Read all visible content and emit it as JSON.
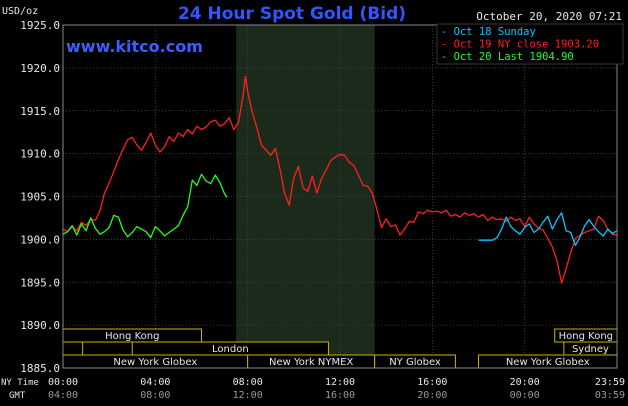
{
  "chart_data": {
    "type": "line",
    "title": "24 Hour Spot Gold (Bid)",
    "watermark": "www.kitco.com",
    "timestamp": "October 20, 2020 07:21",
    "ylabel": "USD/oz",
    "ylim": [
      1885,
      1925
    ],
    "yticks": [
      "1925.0",
      "1920.0",
      "1915.0",
      "1910.0",
      "1905.0",
      "1900.0",
      "1895.0",
      "1890.0",
      "1885.0"
    ],
    "x_row1_label": "NY Time",
    "x_row2_label": "GMT",
    "x_ticks_ny": [
      "00:00",
      "04:00",
      "08:00",
      "12:00",
      "16:00",
      "20:00",
      "23:59"
    ],
    "x_ticks_gmt": [
      "04:00",
      "08:00",
      "12:00",
      "16:00",
      "20:00",
      "00:00",
      "03:59"
    ],
    "legend": [
      {
        "text": "Oct 18 Sunday",
        "color": "#00c8ff"
      },
      {
        "text": "Oct 19 NY close 1903.20",
        "color": "#ff2020"
      },
      {
        "text": "Oct 20 Last 1904.90",
        "color": "#20ff20"
      }
    ],
    "shaded_session_hours": [
      7.5,
      13.5
    ],
    "sessions": [
      {
        "name": "Hong Kong",
        "row": 0,
        "start": 0.0,
        "end": 6.0
      },
      {
        "name": "Hong Kong",
        "row": 0,
        "start": 21.3,
        "end": 24.0
      },
      {
        "name": "London",
        "row": 1,
        "start": 0.0,
        "end": 0.85
      },
      {
        "name": "London",
        "row": 1,
        "start": 3.0,
        "end": 11.5
      },
      {
        "name": "Sydney",
        "row": 1,
        "start": 21.7,
        "end": 24.0
      },
      {
        "name": "New York Globex",
        "row": 2,
        "start": 0.0,
        "end": 8.0
      },
      {
        "name": "New York NYMEX",
        "row": 2,
        "start": 8.0,
        "end": 13.5
      },
      {
        "name": "NY Globex",
        "row": 2,
        "start": 13.5,
        "end": 17.0
      },
      {
        "name": "New York Globex",
        "row": 2,
        "start": 18.0,
        "end": 24.0
      }
    ],
    "series": [
      {
        "name": "Oct 19 NY close 1903.20",
        "color": "#ff2020",
        "x": [
          0,
          0.2,
          0.4,
          0.6,
          0.8,
          1.0,
          1.2,
          1.4,
          1.6,
          1.8,
          2.0,
          2.2,
          2.4,
          2.6,
          2.8,
          3.0,
          3.2,
          3.4,
          3.6,
          3.8,
          4.0,
          4.2,
          4.4,
          4.6,
          4.8,
          5.0,
          5.2,
          5.4,
          5.6,
          5.8,
          6.0,
          6.2,
          6.4,
          6.6,
          6.8,
          7.0,
          7.2,
          7.4,
          7.6,
          7.8,
          7.9,
          8.0,
          8.2,
          8.4,
          8.6,
          8.8,
          9.0,
          9.2,
          9.4,
          9.6,
          9.8,
          10.0,
          10.2,
          10.4,
          10.6,
          10.8,
          11.0,
          11.2,
          11.4,
          11.6,
          11.8,
          12.0,
          12.2,
          12.4,
          12.6,
          12.8,
          13.0,
          13.2,
          13.4,
          13.6,
          13.8,
          14.0,
          14.2,
          14.4,
          14.6,
          14.8,
          15.0,
          15.2,
          15.4,
          15.6,
          15.8,
          16.0,
          16.2,
          16.4,
          16.6,
          16.8,
          17.0,
          17.2,
          17.4,
          17.6,
          17.8,
          18.0,
          18.2,
          18.4,
          18.6,
          18.8,
          19.0,
          19.2,
          19.4,
          19.6,
          19.8,
          20.0,
          20.2,
          20.4,
          20.6,
          20.8,
          21.0,
          21.2,
          21.4,
          21.6,
          21.8,
          22.0,
          22.2,
          22.4,
          22.6,
          22.8,
          23.0,
          23.2,
          23.4,
          23.6,
          23.8,
          24.0
        ],
        "values": [
          1901.2,
          1900.9,
          1901.5,
          1901.0,
          1902.0,
          1901.6,
          1902.4,
          1902.2,
          1903.3,
          1905.4,
          1906.6,
          1907.9,
          1909.3,
          1910.5,
          1911.6,
          1911.9,
          1911.0,
          1910.4,
          1911.3,
          1912.4,
          1911.0,
          1910.2,
          1910.8,
          1912.0,
          1911.4,
          1912.4,
          1912.0,
          1912.8,
          1912.3,
          1913.2,
          1912.8,
          1913.1,
          1913.7,
          1913.9,
          1913.2,
          1913.5,
          1914.2,
          1912.8,
          1913.6,
          1916.8,
          1919.0,
          1917.2,
          1914.8,
          1913.0,
          1911.0,
          1910.4,
          1909.8,
          1910.6,
          1908.2,
          1905.4,
          1904.0,
          1907.2,
          1908.5,
          1906.0,
          1905.6,
          1907.4,
          1905.4,
          1907.1,
          1908.1,
          1909.2,
          1909.6,
          1909.9,
          1909.8,
          1909.0,
          1908.6,
          1907.5,
          1906.3,
          1906.2,
          1905.4,
          1903.5,
          1901.4,
          1902.4,
          1901.5,
          1901.7,
          1900.5,
          1901.2,
          1902.1,
          1902.0,
          1903.2,
          1903.0,
          1903.4,
          1903.2,
          1903.3,
          1903.1,
          1903.4,
          1902.7,
          1902.9,
          1902.6,
          1903.1,
          1902.8,
          1903.0,
          1902.6,
          1902.9,
          1902.2,
          1902.6,
          1902.3,
          1902.4,
          1902.1,
          1902.6,
          1902.2,
          1902.4,
          1901.5,
          1902.6,
          1901.8,
          1901.3,
          1901.1,
          1900.1,
          1899.1,
          1897.5,
          1894.9,
          1896.6,
          1898.5,
          1900.1,
          1900.5,
          1900.8,
          1901.0,
          1901.2,
          1902.7,
          1902.2,
          1901.2,
          1900.6,
          1900.5
        ]
      },
      {
        "name": "Oct 20 Last 1904.90",
        "color": "#20ff20",
        "x": [
          0,
          0.2,
          0.4,
          0.6,
          0.8,
          1.0,
          1.2,
          1.4,
          1.6,
          1.8,
          2.0,
          2.2,
          2.4,
          2.6,
          2.8,
          3.0,
          3.2,
          3.4,
          3.6,
          3.8,
          4.0,
          4.2,
          4.4,
          4.6,
          4.8,
          5.0,
          5.2,
          5.4,
          5.6,
          5.8,
          6.0,
          6.2,
          6.4,
          6.6,
          6.8,
          7.0,
          7.1
        ],
        "values": [
          1900.6,
          1900.9,
          1901.6,
          1900.5,
          1901.8,
          1901.0,
          1902.5,
          1901.3,
          1900.6,
          1900.9,
          1901.4,
          1902.8,
          1902.6,
          1901.1,
          1900.3,
          1900.8,
          1901.5,
          1901.2,
          1900.9,
          1900.2,
          1901.5,
          1901.0,
          1900.4,
          1900.8,
          1901.2,
          1901.6,
          1902.8,
          1903.8,
          1906.9,
          1906.3,
          1907.6,
          1906.8,
          1906.5,
          1907.5,
          1906.6,
          1905.3,
          1904.9
        ]
      },
      {
        "name": "Oct 18 Sunday",
        "color": "#00c8ff",
        "x": [
          18.0,
          18.2,
          18.4,
          18.6,
          18.8,
          19.0,
          19.2,
          19.4,
          19.6,
          19.8,
          20.0,
          20.2,
          20.4,
          20.6,
          20.8,
          21.0,
          21.2,
          21.4,
          21.6,
          21.8,
          22.0,
          22.2,
          22.4,
          22.6,
          22.8,
          23.0,
          23.2,
          23.4,
          23.6,
          23.8,
          24.0
        ],
        "values": [
          1899.9,
          1899.9,
          1899.9,
          1899.9,
          1900.2,
          1901.2,
          1902.6,
          1901.5,
          1901.0,
          1900.6,
          1901.4,
          1901.8,
          1900.8,
          1901.2,
          1902.0,
          1902.7,
          1901.2,
          1902.3,
          1903.1,
          1901.0,
          1900.8,
          1899.3,
          1900.3,
          1901.6,
          1902.3,
          1901.5,
          1900.9,
          1900.4,
          1901.2,
          1900.7,
          1901.0
        ]
      }
    ]
  }
}
